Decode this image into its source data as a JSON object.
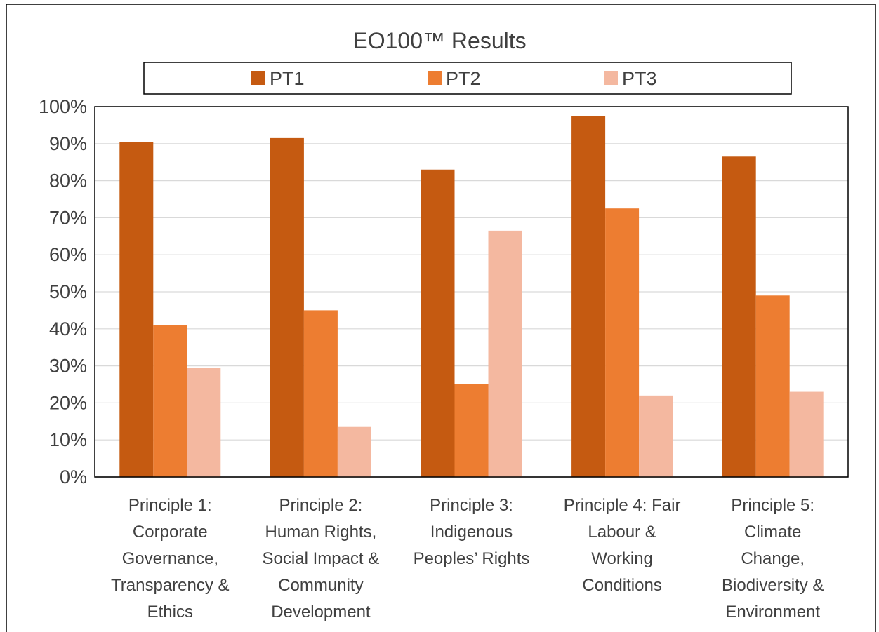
{
  "chart_data": {
    "type": "bar",
    "title": "EO100™ Results",
    "categories": [
      [
        "Principle 1:",
        "Corporate",
        "Governance,",
        "Transparency &",
        "Ethics"
      ],
      [
        "Principle 2:",
        "Human Rights,",
        "Social Impact &",
        "Community",
        "Development"
      ],
      [
        "Principle 3:",
        "Indigenous",
        "Peoples’ Rights"
      ],
      [
        "Principle 4: Fair",
        "Labour &",
        "Working",
        "Conditions"
      ],
      [
        "Principle 5:",
        "Climate",
        "Change,",
        "Biodiversity &",
        "Environment"
      ]
    ],
    "series": [
      {
        "name": "PT1",
        "color": "#c55a11",
        "values": [
          90.5,
          91.5,
          83,
          97.5,
          86.5
        ]
      },
      {
        "name": "PT2",
        "color": "#ed7d31",
        "values": [
          41,
          45,
          25,
          72.5,
          49
        ]
      },
      {
        "name": "PT3",
        "color": "#f4b8a0",
        "values": [
          29.5,
          13.5,
          66.5,
          22,
          23
        ]
      }
    ],
    "ylim": [
      0,
      100
    ],
    "yticks": [
      "0%",
      "10%",
      "20%",
      "30%",
      "40%",
      "50%",
      "60%",
      "70%",
      "80%",
      "90%",
      "100%"
    ],
    "grid": true,
    "legend_position": "top"
  }
}
